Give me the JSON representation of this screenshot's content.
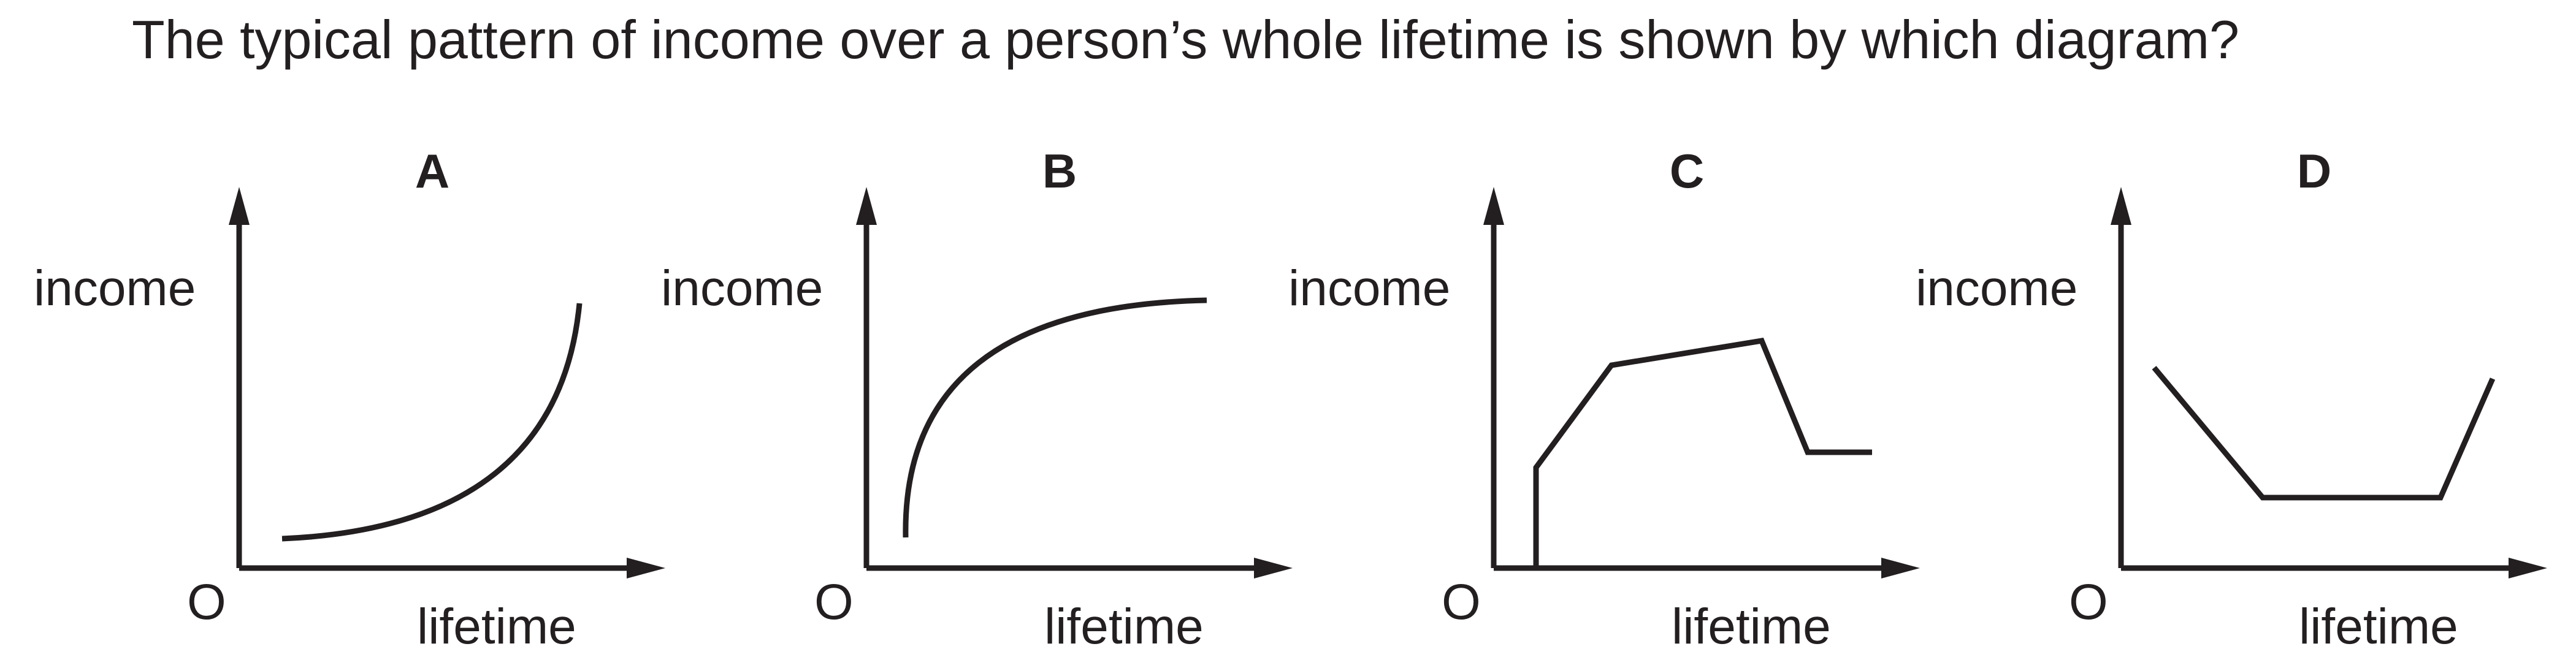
{
  "question": "The typical pattern of income over a person’s whole lifetime is shown by which diagram?",
  "diagrams": [
    {
      "letter": "A",
      "y_label": "income",
      "x_label": "lifetime",
      "origin": "O"
    },
    {
      "letter": "B",
      "y_label": "income",
      "x_label": "lifetime",
      "origin": "O"
    },
    {
      "letter": "C",
      "y_label": "income",
      "x_label": "lifetime",
      "origin": "O"
    },
    {
      "letter": "D",
      "y_label": "income",
      "x_label": "lifetime",
      "origin": "O"
    }
  ]
}
